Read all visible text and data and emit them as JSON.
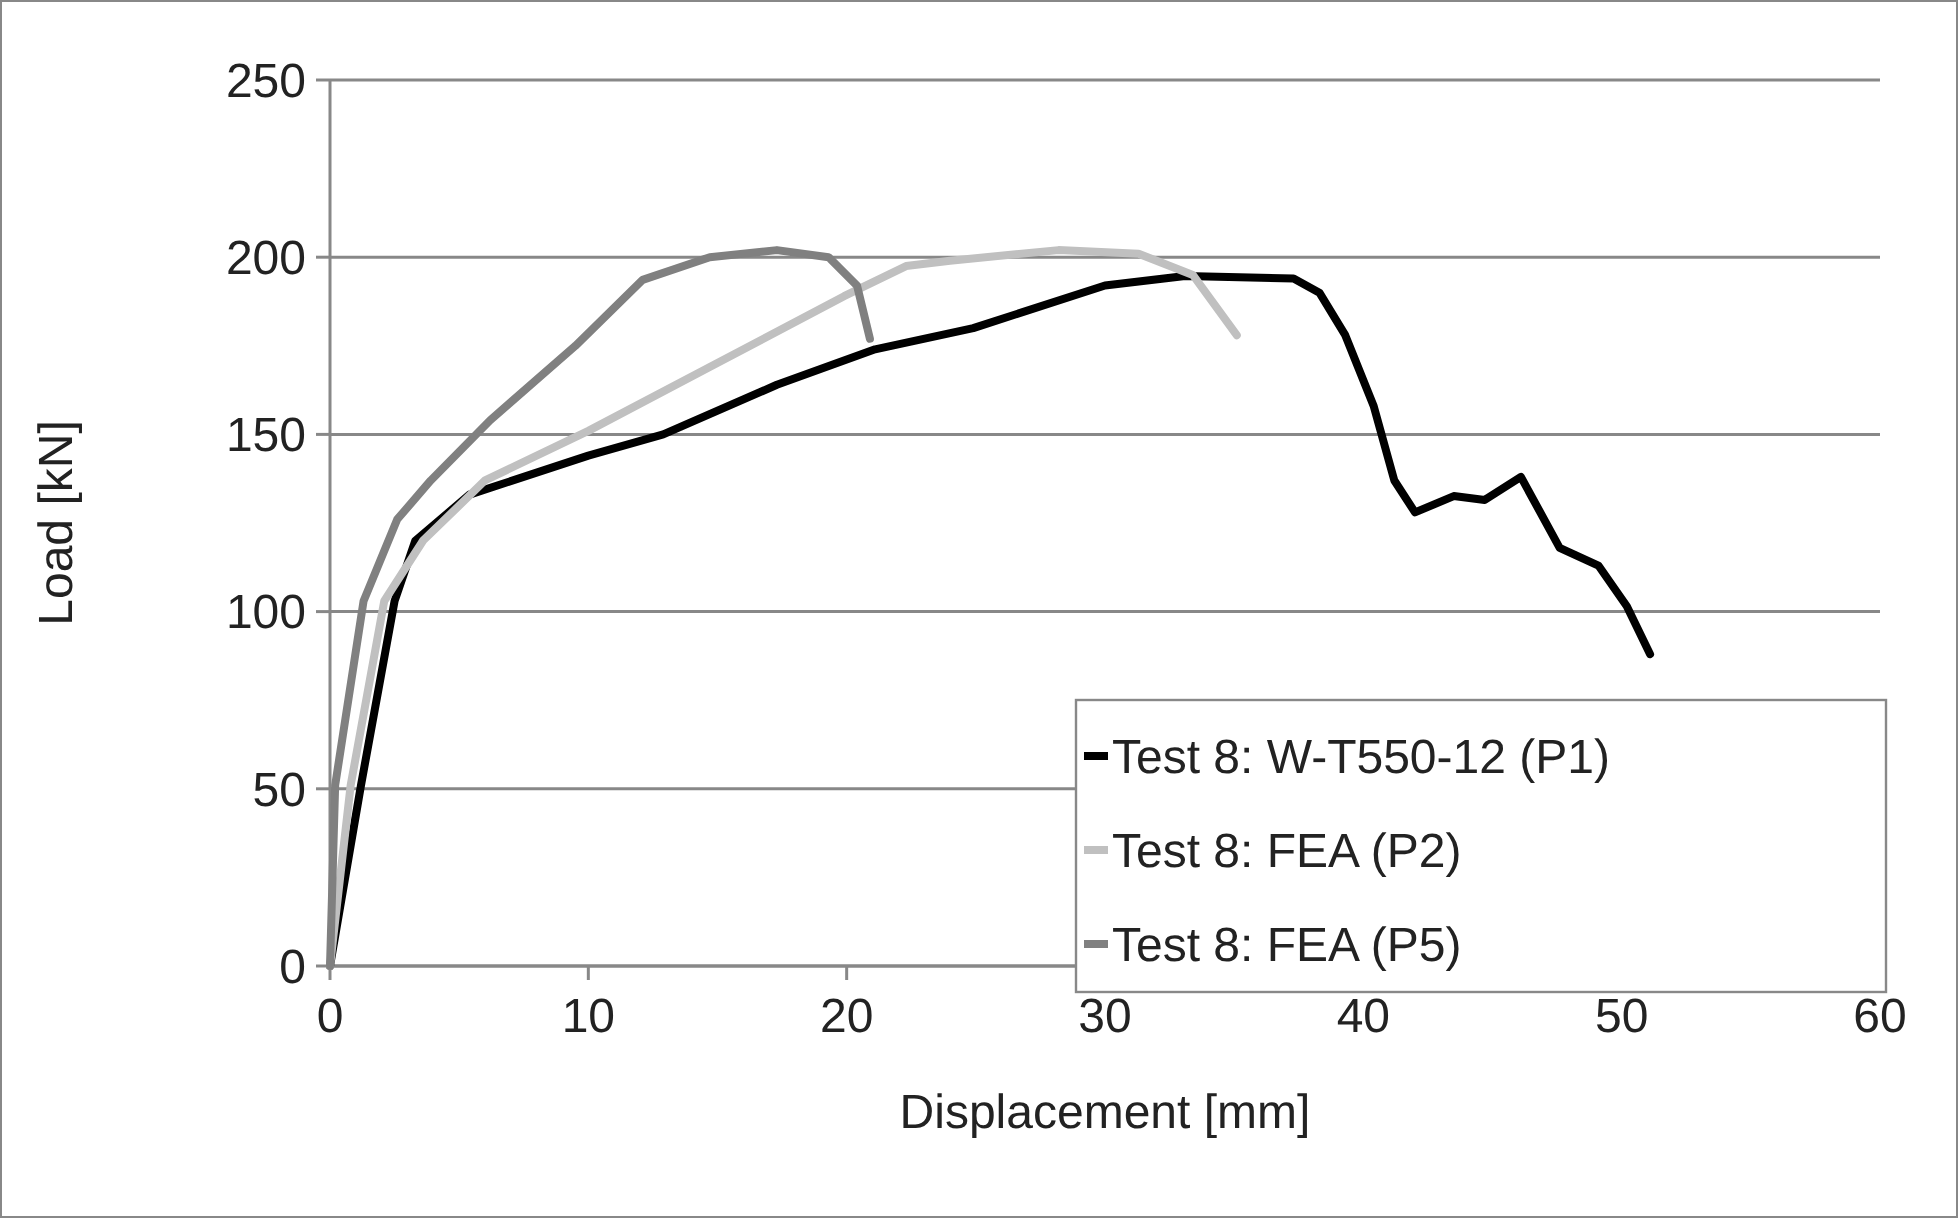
{
  "chart_data": {
    "type": "line",
    "xlabel": "Displacement [mm]",
    "ylabel": "Load [kN]",
    "xlim": [
      0,
      60
    ],
    "ylim": [
      0,
      250
    ],
    "xticks": [
      0,
      10,
      20,
      30,
      40,
      50,
      60
    ],
    "yticks": [
      0,
      50,
      100,
      150,
      200,
      250
    ],
    "grid": "y",
    "legend": "bottom right",
    "marker": "none",
    "line_style": "solid",
    "series": [
      {
        "name": "Test 8: W-T550-12 (P1)",
        "color": "#000000",
        "x": [
          0,
          1.2,
          2.5,
          3.3,
          5.4,
          10,
          12.9,
          17.3,
          21.1,
          24.9,
          30,
          33.1,
          37.3,
          38.3,
          39.3,
          40.4,
          41.2,
          42,
          43.5,
          44.7,
          46.1,
          47.6,
          49.1,
          50.2,
          51.1
        ],
        "values": [
          0,
          51,
          103,
          120,
          133,
          144,
          150,
          164,
          174,
          180,
          192,
          194.7,
          194,
          190,
          178,
          158,
          137,
          128,
          132.6,
          131.5,
          138,
          118,
          113,
          101.5,
          88
        ]
      },
      {
        "name": "Test 8: FEA (P2)",
        "color": "#c0c0c0",
        "x": [
          0,
          0.8,
          2.1,
          3.6,
          6,
          10,
          14.7,
          19.9,
          22.3,
          24,
          28.2,
          31.3,
          33.4,
          35.1
        ],
        "values": [
          0,
          51,
          103,
          120,
          137,
          151,
          169,
          189,
          197.5,
          199,
          202,
          201,
          195,
          178
        ]
      },
      {
        "name": "Test 8: FEA (P5)",
        "color": "#808080",
        "x": [
          0,
          0.2,
          1.3,
          2.6,
          3.9,
          6.2,
          9.5,
          12.1,
          14.7,
          17.3,
          19.3,
          20.4,
          20.9
        ],
        "values": [
          0,
          51,
          103,
          126,
          137,
          154,
          175,
          193.6,
          200,
          202,
          200,
          192,
          177
        ]
      }
    ]
  }
}
